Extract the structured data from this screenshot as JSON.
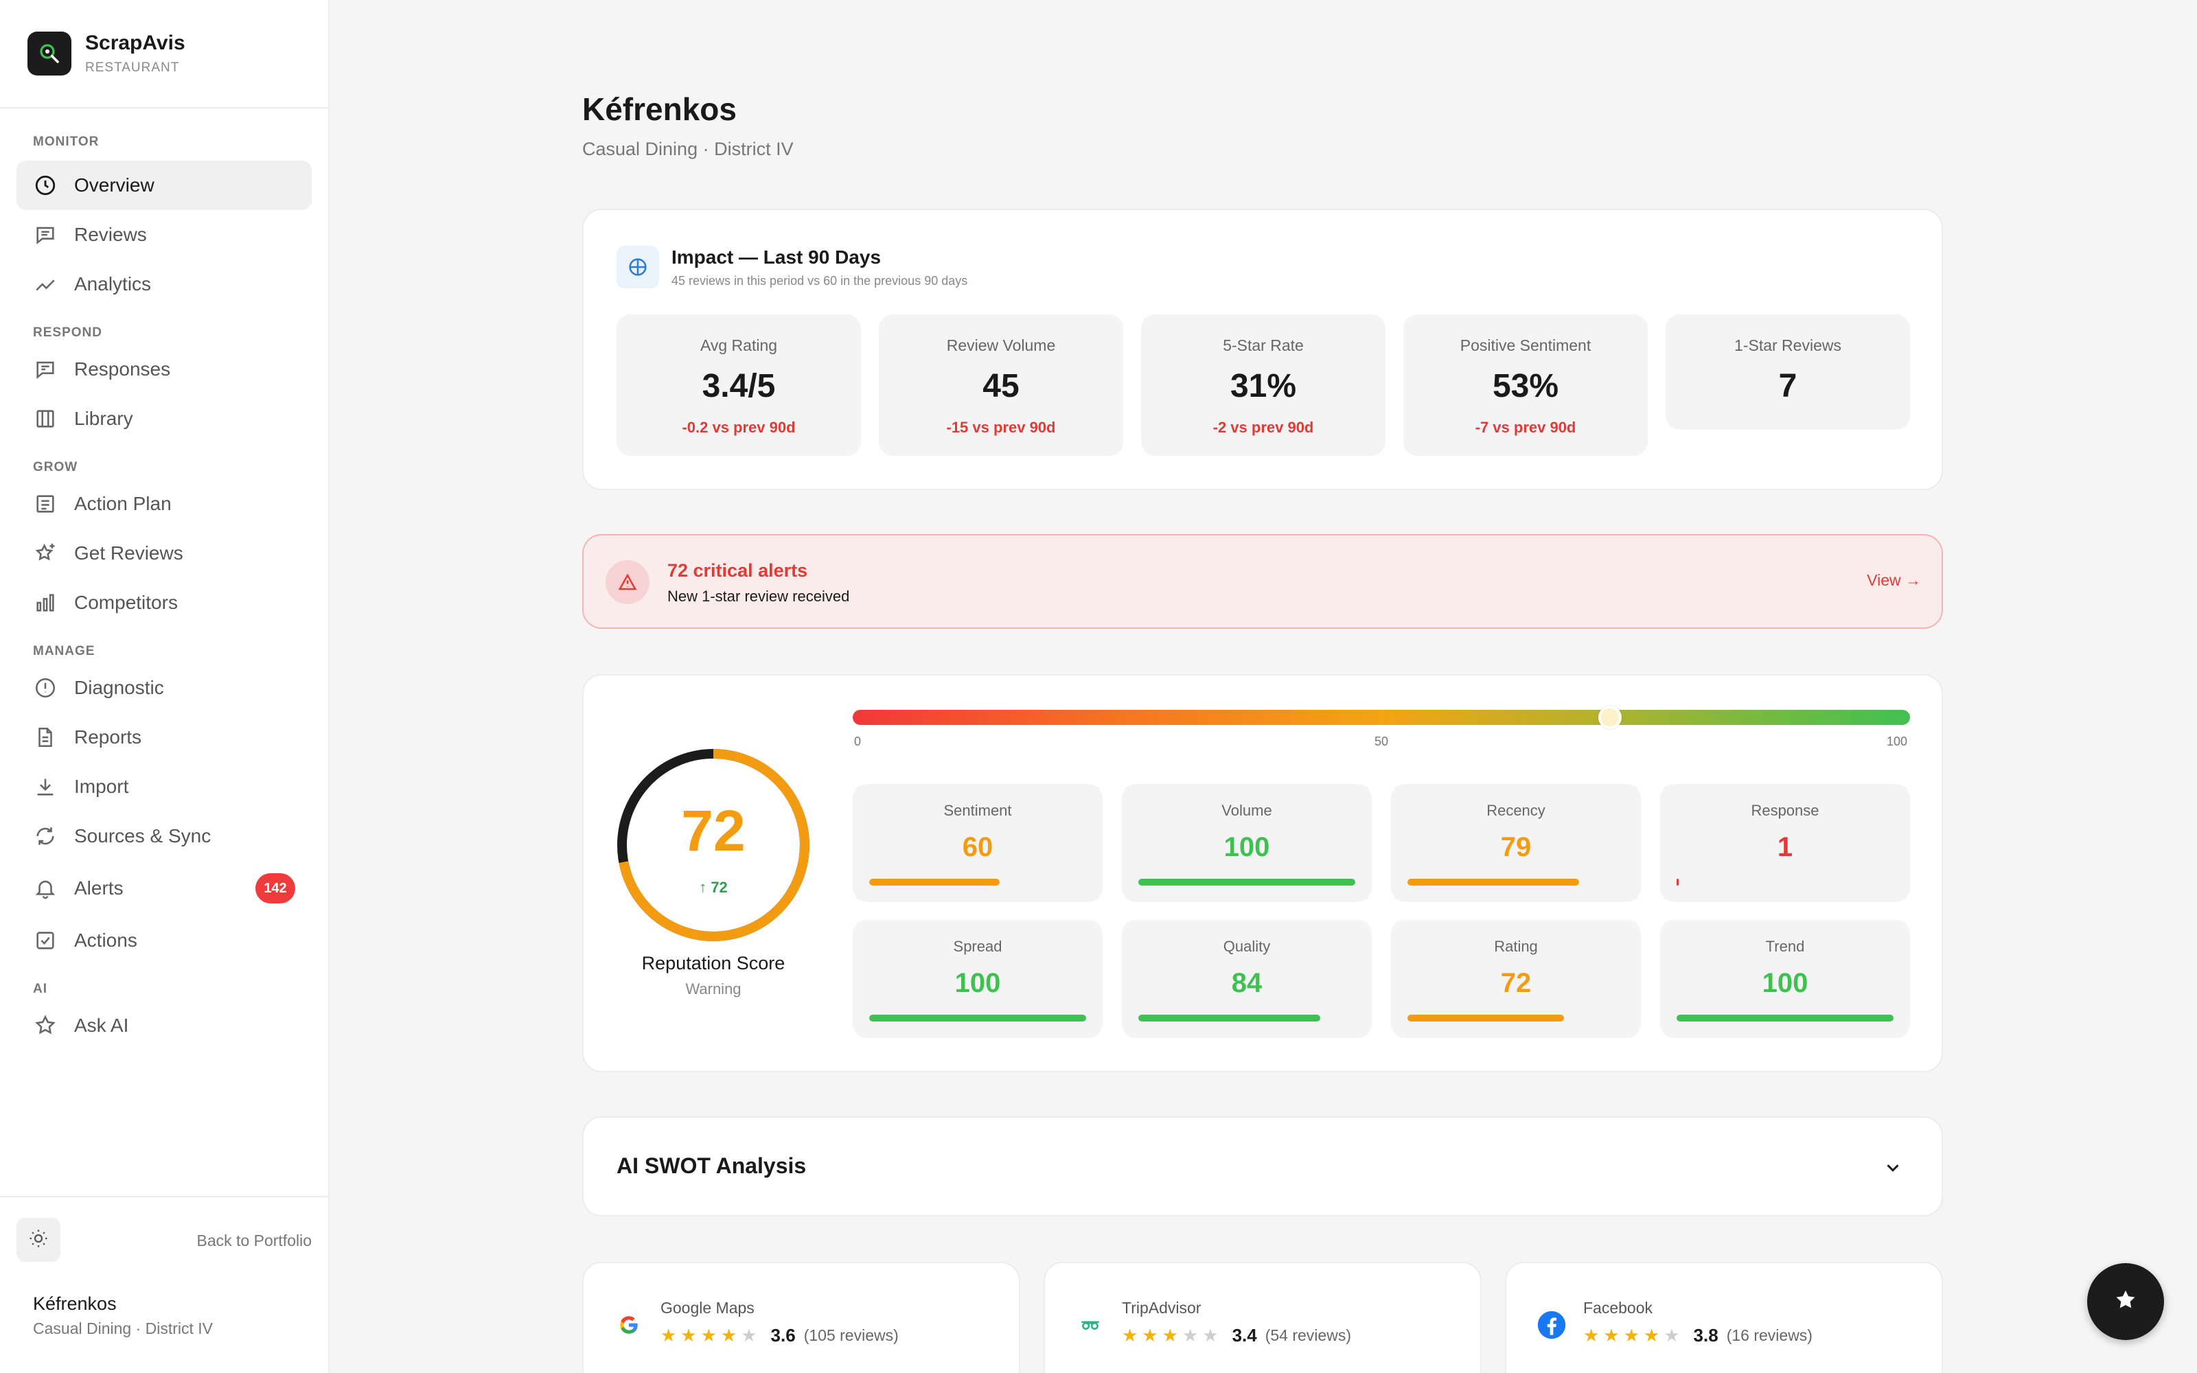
{
  "brand": {
    "name": "ScrapAvis",
    "subtitle": "RESTAURANT"
  },
  "sidebar": {
    "sections": [
      {
        "title": "MONITOR",
        "items": [
          {
            "label": "Overview",
            "icon": "clock-icon",
            "active": true
          },
          {
            "label": "Reviews",
            "icon": "message-icon"
          },
          {
            "label": "Analytics",
            "icon": "trend-icon"
          }
        ]
      },
      {
        "title": "RESPOND",
        "items": [
          {
            "label": "Responses",
            "icon": "reply-icon"
          },
          {
            "label": "Library",
            "icon": "library-icon"
          }
        ]
      },
      {
        "title": "GROW",
        "items": [
          {
            "label": "Action Plan",
            "icon": "list-icon"
          },
          {
            "label": "Get Reviews",
            "icon": "star-plus-icon"
          },
          {
            "label": "Competitors",
            "icon": "bar-chart-icon"
          }
        ]
      },
      {
        "title": "MANAGE",
        "items": [
          {
            "label": "Diagnostic",
            "icon": "alert-circle-icon"
          },
          {
            "label": "Reports",
            "icon": "file-icon"
          },
          {
            "label": "Import",
            "icon": "download-icon"
          },
          {
            "label": "Sources & Sync",
            "icon": "sync-icon"
          },
          {
            "label": "Alerts",
            "icon": "bell-icon",
            "badge": "142"
          },
          {
            "label": "Actions",
            "icon": "checkbox-icon"
          }
        ]
      },
      {
        "title": "AI",
        "items": [
          {
            "label": "Ask AI",
            "icon": "star-icon"
          }
        ]
      }
    ],
    "back_label": "Back to Portfolio",
    "restaurant_name": "Kéfrenkos",
    "restaurant_meta": "Casual Dining · District IV"
  },
  "page": {
    "title": "Kéfrenkos",
    "subtitle": "Casual Dining · District IV"
  },
  "impact": {
    "title": "Impact — Last 90 Days",
    "subtitle": "45 reviews in this period vs 60 in the previous 90 days",
    "stats": [
      {
        "label": "Avg Rating",
        "value": "3.4/5",
        "delta": "-0.2 vs prev 90d"
      },
      {
        "label": "Review Volume",
        "value": "45",
        "delta": "-15 vs prev 90d"
      },
      {
        "label": "5-Star Rate",
        "value": "31%",
        "delta": "-2 vs prev 90d"
      },
      {
        "label": "Positive Sentiment",
        "value": "53%",
        "delta": "-7 vs prev 90d"
      },
      {
        "label": "1-Star Reviews",
        "value": "7",
        "delta": ""
      }
    ]
  },
  "alert": {
    "title": "72 critical alerts",
    "message": "New 1-star review received",
    "link": "View →"
  },
  "reputation": {
    "score": 72,
    "score_text": "72",
    "delta_text": "↑ 72",
    "label": "Reputation Score",
    "status": "Warning",
    "scale_ticks": [
      "0",
      "50",
      "100"
    ],
    "colors": {
      "good": "#3fc152",
      "warn": "#f39c12",
      "bad": "#e53935"
    },
    "metrics": [
      {
        "label": "Sentiment",
        "value": 60,
        "level": "warn"
      },
      {
        "label": "Volume",
        "value": 100,
        "level": "good"
      },
      {
        "label": "Recency",
        "value": 79,
        "level": "warn"
      },
      {
        "label": "Response",
        "value": 1,
        "level": "bad"
      },
      {
        "label": "Spread",
        "value": 100,
        "level": "good"
      },
      {
        "label": "Quality",
        "value": 84,
        "level": "good"
      },
      {
        "label": "Rating",
        "value": 72,
        "level": "warn"
      },
      {
        "label": "Trend",
        "value": 100,
        "level": "good"
      }
    ]
  },
  "swot": {
    "title": "AI SWOT Analysis"
  },
  "platforms": [
    {
      "name": "Google Maps",
      "logo": "google-icon",
      "rating": 3.6,
      "rating_text": "3.6",
      "stars": 4,
      "count": "(105 reviews)"
    },
    {
      "name": "TripAdvisor",
      "logo": "tripadvisor-icon",
      "rating": 3.4,
      "rating_text": "3.4",
      "stars": 3,
      "count": "(54 reviews)"
    },
    {
      "name": "Facebook",
      "logo": "facebook-icon",
      "rating": 3.8,
      "rating_text": "3.8",
      "stars": 4,
      "count": "(16 reviews)"
    }
  ]
}
